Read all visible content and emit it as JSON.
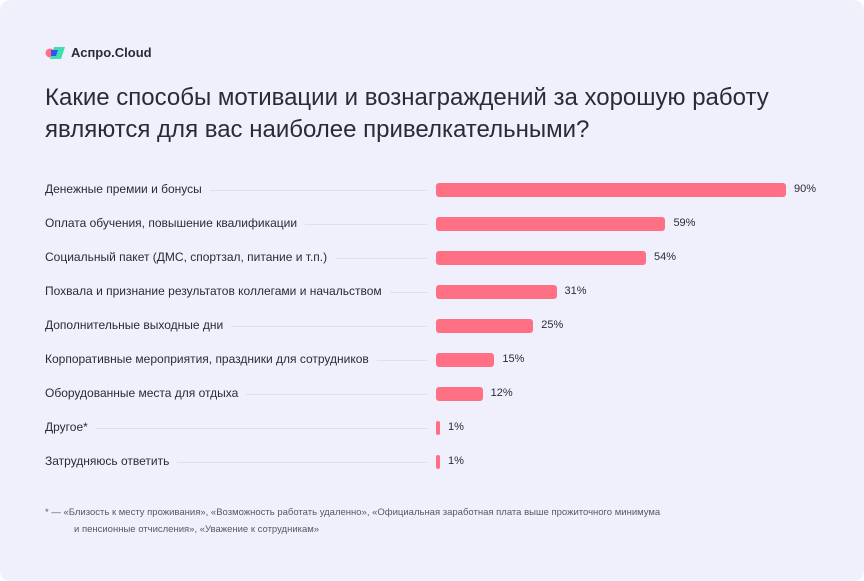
{
  "brand": {
    "name": "Аспро.Cloud"
  },
  "title": "Какие способы мотивации и вознаграждений за хорошую работу являются для вас наиболее привелкательными?",
  "chart_data": {
    "type": "bar",
    "orientation": "horizontal",
    "categories": [
      "Денежные премии и бонусы",
      "Оплата обучения, повышение квалификации",
      "Социальный пакет (ДМС, спортзал, питание и т.п.)",
      "Похвала и признание результатов коллегами и начальством",
      "Дополнительные выходные дни",
      "Корпоративные мероприятия, праздники для сотрудников",
      "Оборудованные места для отдыха",
      "Другое*",
      "Затрудняюсь ответить"
    ],
    "values": [
      90,
      59,
      54,
      31,
      25,
      15,
      12,
      1,
      1
    ],
    "labels": [
      "90%",
      "59%",
      "54%",
      "31%",
      "25%",
      "15%",
      "12%",
      "1%",
      "1%"
    ],
    "unit": "%",
    "xlim": [
      0,
      100
    ],
    "bar_color": "#ff7085",
    "grid": false
  },
  "footnote": {
    "line1": "* — «Близость к месту проживания», «Возможность работать удаленно», «Официальная заработная плата выше прожиточного минимума",
    "line2": "и пенсионные отчисления», «Уважение к сотрудникам»"
  }
}
